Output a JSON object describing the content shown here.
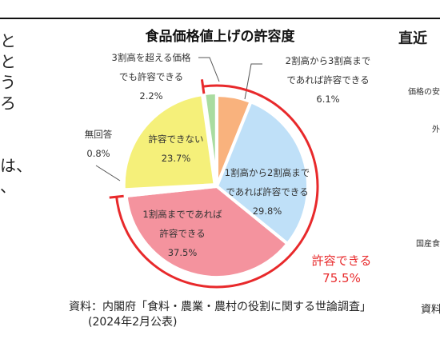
{
  "left_text": [
    "と",
    "と",
    "う",
    "ろ",
    "",
    "",
    "は、",
    "、"
  ],
  "right_panel": {
    "title": "直近",
    "labels": [
      "価格の安",
      "外",
      "国産食"
    ],
    "source": "資料"
  },
  "chart_data": {
    "type": "pie",
    "title": "食品価格値上げの許容度",
    "unit": "%",
    "slices": [
      {
        "label_lines": [
          "2割高から3割高まで",
          "であれば許容できる"
        ],
        "value": 6.1,
        "value_text": "6.1%",
        "color": "#f9b27d"
      },
      {
        "label_lines": [
          "1割高から2割高まで",
          "であれば許容できる"
        ],
        "value": 29.8,
        "value_text": "29.8%",
        "color": "#bfe0f8"
      },
      {
        "label_lines": [
          "1割高までであれば",
          "許容できる"
        ],
        "value": 37.5,
        "value_text": "37.5%",
        "color": "#f4939e"
      },
      {
        "label_lines": [
          "無回答"
        ],
        "value": 0.8,
        "value_text": "0.8%",
        "color": "#ffffff"
      },
      {
        "label_lines": [
          "許容できない"
        ],
        "value": 23.7,
        "value_text": "23.7%",
        "color": "#f5f07a"
      },
      {
        "label_lines": [
          "3割高を超える価格",
          "でも許容できる"
        ],
        "value": 2.2,
        "value_text": "2.2%",
        "color": "#a9dca0"
      }
    ],
    "highlight": {
      "label": "許容できる",
      "value_text": "75.5%",
      "color": "#e8292b"
    },
    "source_lines": [
      "資料：内閣府「食料・農業・農村の役割に関する世論調査」",
      "(2024年2月公表)"
    ]
  }
}
